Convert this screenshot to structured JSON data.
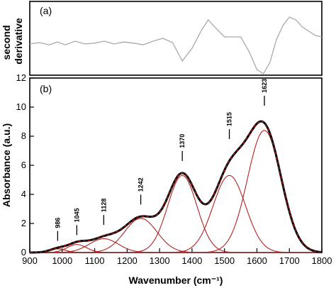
{
  "chart_data": [
    {
      "panel": "(a)",
      "type": "line",
      "ylabel": "second\nderivative",
      "xlim": [
        900,
        1800
      ],
      "series": [
        {
          "x": [
            900,
            930,
            960,
            985,
            1010,
            1040,
            1070,
            1100,
            1130,
            1160,
            1190,
            1220,
            1250,
            1280,
            1310,
            1340,
            1370,
            1400,
            1430,
            1450,
            1470,
            1500,
            1530,
            1550,
            1575,
            1600,
            1620,
            1640,
            1660,
            1680,
            1700,
            1720,
            1740,
            1760,
            1780,
            1800
          ],
          "values": [
            0.05,
            0.1,
            0.02,
            0.12,
            0.02,
            0.15,
            0.05,
            0.08,
            0.15,
            0.05,
            0.12,
            0.08,
            0.02,
            0.15,
            0.25,
            0.1,
            -0.55,
            -0.1,
            0.55,
            0.9,
            0.65,
            0.3,
            0.3,
            0.3,
            -0.2,
            -0.85,
            -1.0,
            -0.6,
            0.2,
            0.7,
            1.0,
            0.9,
            0.65,
            0.5,
            0.35,
            0.3
          ]
        }
      ]
    },
    {
      "panel": "(b)",
      "type": "line",
      "xlabel": "Wavenumber (cm⁻¹)",
      "ylabel": "Absorbance (a.u.)",
      "xlim": [
        900,
        1800
      ],
      "ylim": [
        0,
        12
      ],
      "xticks": [
        900,
        1000,
        1100,
        1200,
        1300,
        1400,
        1500,
        1600,
        1700,
        1800
      ],
      "yticks": [
        0,
        2,
        4,
        6,
        8,
        10,
        12
      ],
      "peak_labels": [
        {
          "label": "986",
          "x": 986,
          "y": 0.8
        },
        {
          "label": "1045",
          "x": 1045,
          "y": 1.2
        },
        {
          "label": "1128",
          "x": 1128,
          "y": 1.9
        },
        {
          "label": "1242",
          "x": 1242,
          "y": 3.3
        },
        {
          "label": "1370",
          "x": 1370,
          "y": 6.3
        },
        {
          "label": "1515",
          "x": 1515,
          "y": 7.8
        },
        {
          "label": "1623",
          "x": 1623,
          "y": 10.1
        }
      ],
      "components": [
        {
          "center": 986,
          "height": 0.25,
          "width": 25
        },
        {
          "center": 1045,
          "height": 0.55,
          "width": 30
        },
        {
          "center": 1128,
          "height": 0.95,
          "width": 45
        },
        {
          "center": 1242,
          "height": 2.35,
          "width": 50
        },
        {
          "center": 1370,
          "height": 5.3,
          "width": 45
        },
        {
          "center": 1515,
          "height": 5.3,
          "width": 50
        },
        {
          "center": 1623,
          "height": 8.4,
          "width": 52
        }
      ]
    }
  ],
  "panel_a_label": "(a)",
  "panel_b_label": "(b)"
}
